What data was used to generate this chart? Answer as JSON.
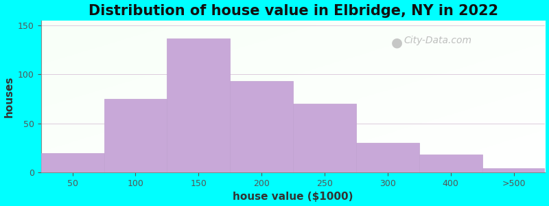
{
  "title": "Distribution of house value in Elbridge, NY in 2022",
  "xlabel": "house value ($1000)",
  "ylabel": "houses",
  "bar_values": [
    20,
    75,
    137,
    93,
    70,
    30,
    18,
    4
  ],
  "bar_labels": [
    "50",
    "100",
    "150",
    "200",
    "250",
    "300",
    "400",
    ">500"
  ],
  "bar_color": "#c8a8d8",
  "bar_edgecolor": "#c0a0d0",
  "ylim": [
    0,
    155
  ],
  "yticks": [
    0,
    50,
    100,
    150
  ],
  "outer_bg": "#00FFFF",
  "title_fontsize": 15,
  "axis_label_fontsize": 11,
  "tick_fontsize": 9,
  "watermark_text": "City-Data.com",
  "watermark_color": "#aaaaaa",
  "grid_color": "#ddccdd",
  "figsize": [
    8.0,
    3.0
  ],
  "dpi": 100
}
